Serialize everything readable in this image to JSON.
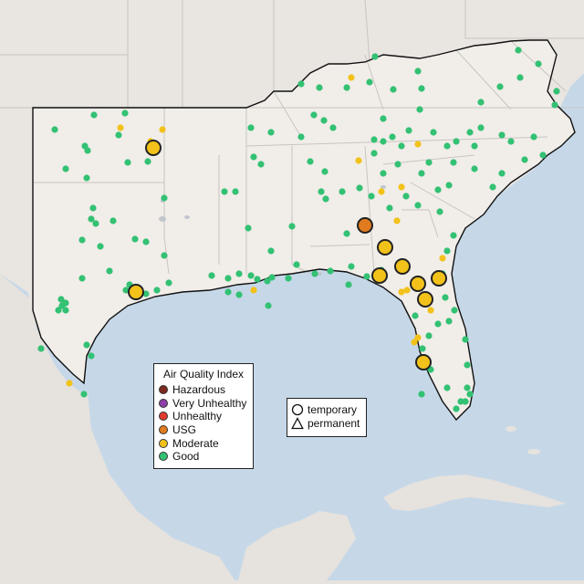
{
  "legend": {
    "title": "Air Quality Index",
    "categories": [
      {
        "label": "Hazardous",
        "color": "#7e2a1f"
      },
      {
        "label": "Very Unhealthy",
        "color": "#8f3fa8"
      },
      {
        "label": "Unhealthy",
        "color": "#e03a2f"
      },
      {
        "label": "USG",
        "color": "#e07b1f"
      },
      {
        "label": "Moderate",
        "color": "#f2c21a"
      },
      {
        "label": "Good",
        "color": "#33c173"
      }
    ]
  },
  "shape_legend": {
    "temporary": "temporary",
    "permanent": "permanent"
  },
  "colors": {
    "ocean": "#c6d8e8",
    "land_foreign": "#e7e4e0",
    "land_region": "#f1ede9",
    "good": "#33c173",
    "moderate": "#f2c21a",
    "usg": "#e07b1f"
  }
}
